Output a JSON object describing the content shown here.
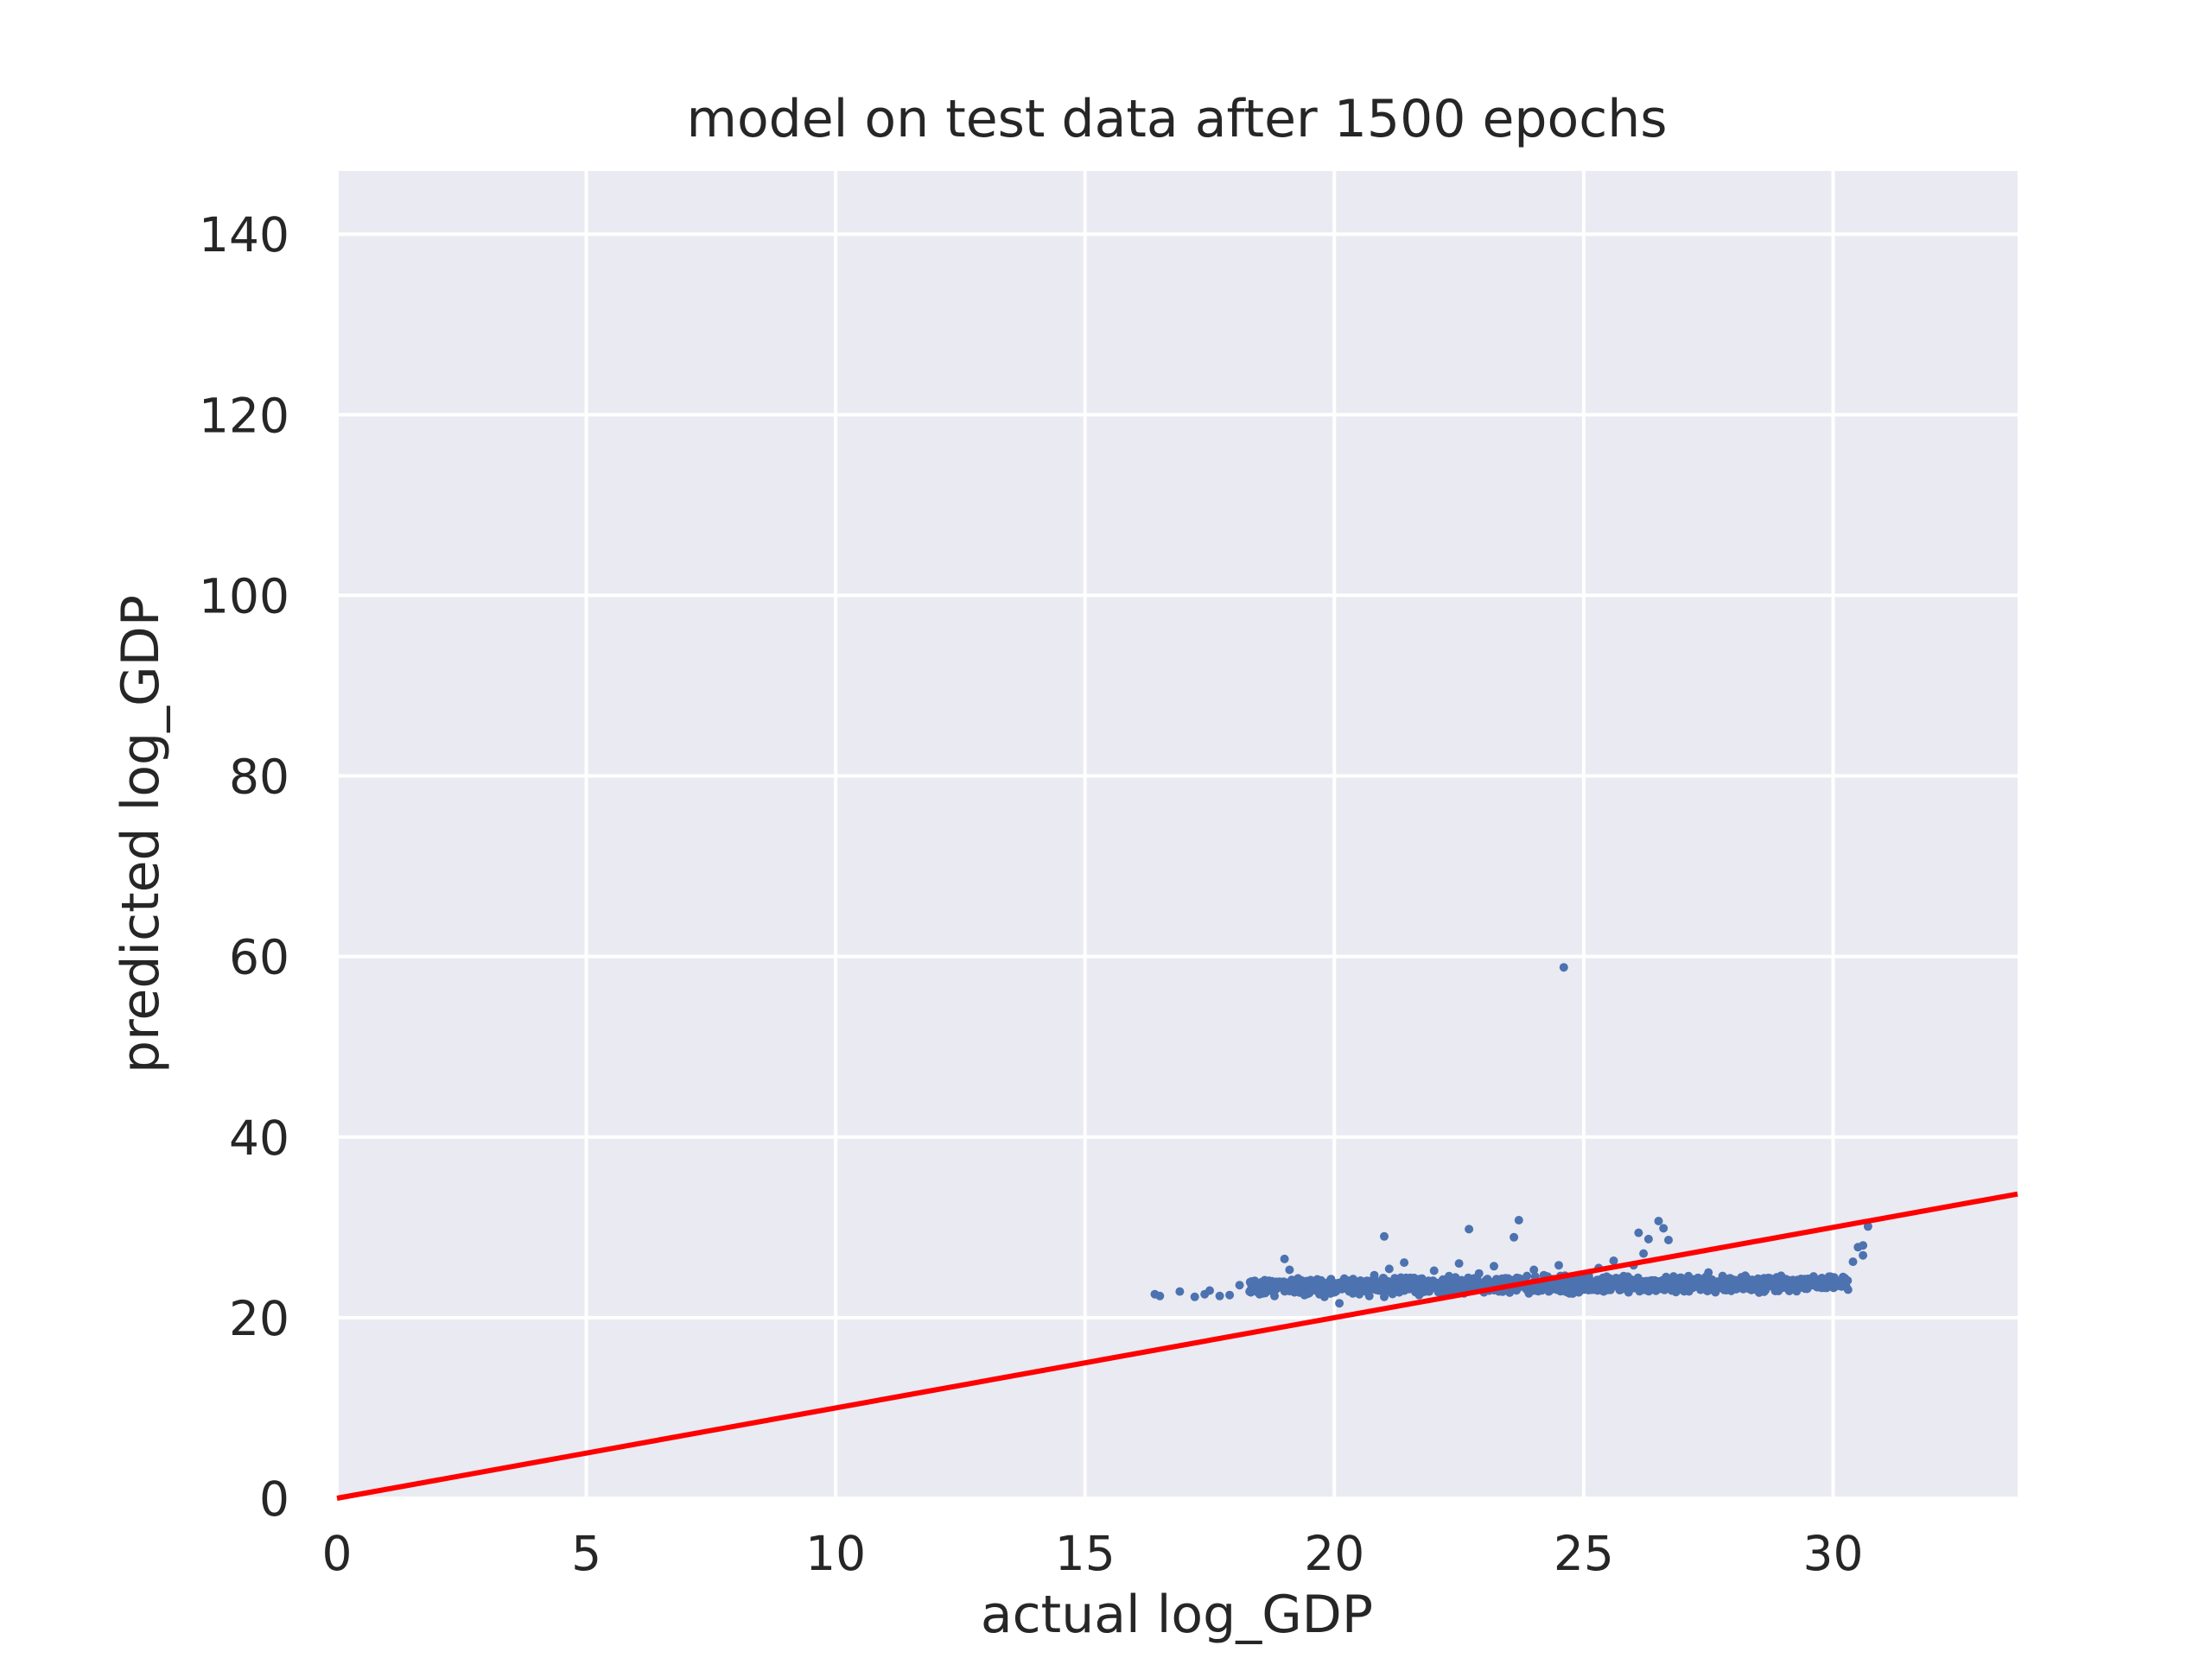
{
  "chart_data": {
    "type": "scatter",
    "title": "model on test data after 1500 epochs",
    "xlabel": "actual log_GDP",
    "ylabel": "predicted log_GDP",
    "xlim": [
      0,
      33.7
    ],
    "ylim": [
      0,
      147
    ],
    "xticks": [
      0,
      5,
      10,
      15,
      20,
      25,
      30
    ],
    "yticks": [
      0,
      20,
      40,
      60,
      80,
      100,
      120,
      140
    ],
    "grid": true,
    "background": "#eaeaf2",
    "point_color": "#4c72b0",
    "reference_line": {
      "label": "y = x",
      "color": "#ff0000",
      "x": [
        0,
        33.7
      ],
      "y": [
        0,
        33.7
      ]
    },
    "series": [
      {
        "points": [
          [
            16.4,
            22.6
          ],
          [
            16.5,
            22.4
          ],
          [
            16.9,
            22.9
          ],
          [
            17.2,
            22.3
          ],
          [
            17.4,
            22.6
          ],
          [
            17.5,
            23.0
          ],
          [
            17.7,
            22.4
          ],
          [
            17.9,
            22.5
          ],
          [
            18.1,
            23.6
          ],
          [
            18.3,
            22.9
          ],
          [
            18.5,
            22.6
          ],
          [
            18.6,
            23.1
          ],
          [
            18.8,
            22.4
          ],
          [
            18.9,
            23.9
          ],
          [
            19.0,
            26.5
          ],
          [
            19.1,
            25.3
          ],
          [
            19.2,
            22.8
          ],
          [
            19.3,
            23.4
          ],
          [
            19.4,
            22.5
          ],
          [
            19.5,
            23.0
          ],
          [
            19.6,
            23.7
          ],
          [
            19.7,
            22.6
          ],
          [
            19.8,
            22.3
          ],
          [
            19.9,
            23.2
          ],
          [
            20.0,
            22.8
          ],
          [
            20.1,
            21.6
          ],
          [
            20.2,
            23.5
          ],
          [
            20.3,
            22.9
          ],
          [
            20.4,
            24.1
          ],
          [
            20.5,
            22.6
          ],
          [
            20.6,
            23.3
          ],
          [
            20.7,
            22.4
          ],
          [
            20.8,
            24.7
          ],
          [
            20.9,
            23.0
          ],
          [
            21.0,
            29.0
          ],
          [
            21.0,
            22.3
          ],
          [
            21.1,
            25.4
          ],
          [
            21.2,
            23.6
          ],
          [
            21.3,
            22.8
          ],
          [
            21.4,
            26.1
          ],
          [
            21.5,
            23.2
          ],
          [
            21.6,
            24.4
          ],
          [
            21.7,
            22.5
          ],
          [
            21.8,
            23.9
          ],
          [
            21.9,
            22.9
          ],
          [
            22.0,
            25.2
          ],
          [
            22.1,
            23.4
          ],
          [
            22.2,
            22.6
          ],
          [
            22.3,
            24.6
          ],
          [
            22.4,
            23.1
          ],
          [
            22.5,
            26.0
          ],
          [
            22.6,
            22.7
          ],
          [
            22.7,
            29.8
          ],
          [
            22.8,
            23.8
          ],
          [
            22.9,
            24.9
          ],
          [
            23.0,
            22.8
          ],
          [
            23.1,
            23.5
          ],
          [
            23.2,
            25.7
          ],
          [
            23.3,
            22.9
          ],
          [
            23.4,
            24.3
          ],
          [
            23.5,
            23.2
          ],
          [
            23.6,
            28.9
          ],
          [
            23.7,
            30.8
          ],
          [
            23.8,
            24.0
          ],
          [
            23.9,
            22.7
          ],
          [
            24.0,
            25.3
          ],
          [
            24.1,
            23.4
          ],
          [
            24.2,
            24.7
          ],
          [
            24.3,
            22.9
          ],
          [
            24.4,
            23.9
          ],
          [
            24.5,
            25.8
          ],
          [
            24.6,
            58.8
          ],
          [
            24.7,
            23.5
          ],
          [
            24.8,
            24.4
          ],
          [
            24.9,
            22.8
          ],
          [
            25.0,
            23.6
          ],
          [
            25.1,
            24.9
          ],
          [
            25.2,
            23.1
          ],
          [
            25.3,
            25.5
          ],
          [
            25.4,
            22.9
          ],
          [
            25.5,
            24.2
          ],
          [
            25.6,
            26.3
          ],
          [
            25.7,
            23.4
          ],
          [
            25.8,
            24.6
          ],
          [
            25.9,
            22.8
          ],
          [
            26.0,
            25.8
          ],
          [
            26.1,
            29.4
          ],
          [
            26.2,
            27.1
          ],
          [
            26.3,
            28.7
          ],
          [
            26.4,
            23.8
          ],
          [
            26.5,
            30.7
          ],
          [
            26.6,
            29.9
          ],
          [
            26.7,
            28.6
          ],
          [
            26.8,
            24.1
          ],
          [
            26.9,
            23.3
          ],
          [
            27.1,
            24.6
          ],
          [
            27.3,
            23.5
          ],
          [
            27.5,
            25.0
          ],
          [
            27.7,
            23.8
          ],
          [
            27.9,
            24.3
          ],
          [
            28.1,
            23.4
          ],
          [
            28.3,
            24.1
          ],
          [
            28.5,
            23.6
          ],
          [
            28.7,
            24.4
          ],
          [
            28.9,
            23.5
          ],
          [
            29.1,
            23.9
          ],
          [
            29.3,
            23.2
          ],
          [
            29.5,
            24.3
          ],
          [
            29.7,
            23.6
          ],
          [
            29.9,
            24.1
          ],
          [
            30.0,
            23.4
          ],
          [
            30.2,
            24.5
          ],
          [
            30.3,
            23.1
          ],
          [
            30.4,
            26.2
          ],
          [
            30.5,
            27.8
          ],
          [
            30.6,
            28.0
          ],
          [
            30.6,
            26.9
          ],
          [
            30.7,
            30.1
          ]
        ]
      }
    ],
    "dense_band": {
      "x_range": [
        18.3,
        30.3
      ],
      "y_range": [
        22.3,
        24.6
      ],
      "count": 1400
    }
  }
}
